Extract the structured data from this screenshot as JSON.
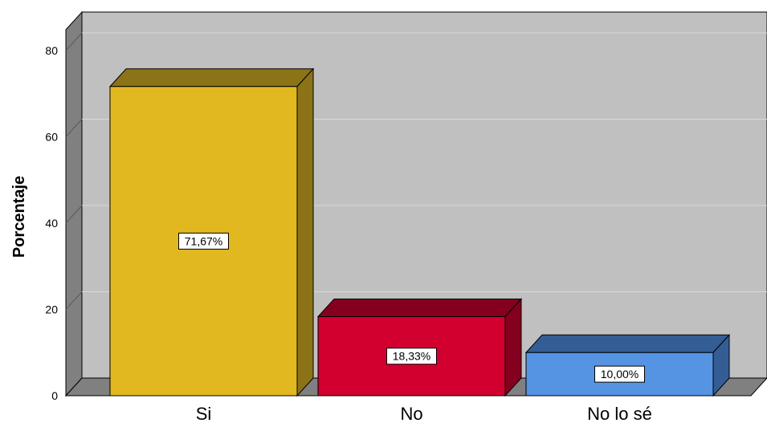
{
  "chart_data": {
    "type": "bar",
    "categories": [
      "Si",
      "No",
      "No lo sé"
    ],
    "values": [
      71.67,
      18.33,
      10.0
    ],
    "data_labels": [
      "71,67%",
      "18,33%",
      "10,00%"
    ],
    "ylabel": "Porcentaje",
    "xlabel": "",
    "ylim": [
      0,
      85
    ],
    "yticks": [
      "0",
      "20",
      "40",
      "60",
      "80"
    ],
    "ytick_values": [
      0,
      20,
      40,
      60,
      80
    ],
    "grid": true,
    "style": "3d",
    "colors": {
      "bars": [
        "#e2b820",
        "#d1002f",
        "#5494e3"
      ],
      "bar_tops": [
        "#8c7317",
        "#85001e",
        "#345d95"
      ],
      "bar_sides": [
        "#8c7317",
        "#85001e",
        "#345d95"
      ],
      "plot_background": "#c0c0c0",
      "wall_side": "#808080",
      "floor": "#808080",
      "gridline": "#d9d9d9"
    }
  }
}
